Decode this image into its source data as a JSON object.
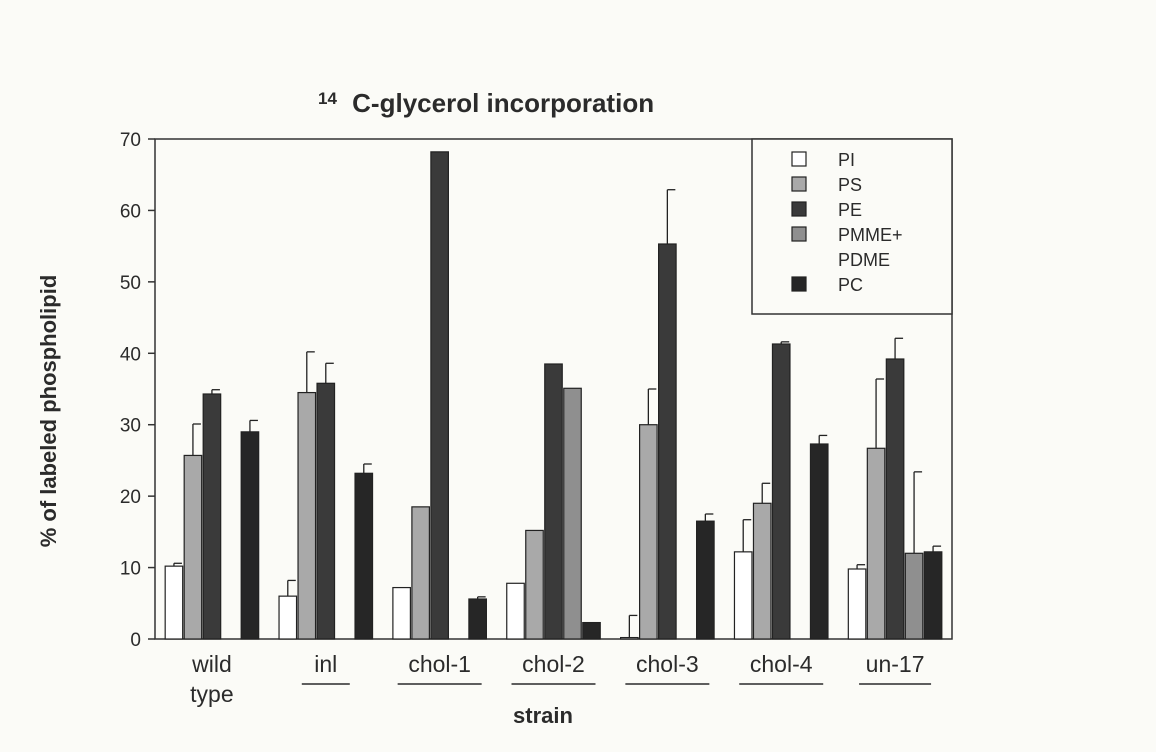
{
  "chart_data": {
    "type": "bar",
    "title_sup": "14",
    "title_main": "C-glycerol incorporation",
    "xlabel": "strain",
    "ylabel": "% of labeled phospholipid",
    "ylim": [
      0,
      70
    ],
    "yticks": [
      0,
      10,
      20,
      30,
      40,
      50,
      60,
      70
    ],
    "categories": [
      {
        "lines": [
          "wild",
          "type"
        ],
        "underline": false
      },
      {
        "lines": [
          "inl"
        ],
        "underline": true
      },
      {
        "lines": [
          "chol-1"
        ],
        "underline": true
      },
      {
        "lines": [
          "chol-2"
        ],
        "underline": true
      },
      {
        "lines": [
          "chol-3"
        ],
        "underline": true
      },
      {
        "lines": [
          "chol-4"
        ],
        "underline": true
      },
      {
        "lines": [
          "un-17"
        ],
        "underline": true
      }
    ],
    "series": [
      {
        "name": "PI",
        "color": "#ffffff",
        "values": [
          10.2,
          6.0,
          7.2,
          7.8,
          0.2,
          12.2,
          9.8
        ],
        "errors": [
          0.4,
          2.2,
          0,
          0,
          3.1,
          4.5,
          0.6
        ]
      },
      {
        "name": "PS",
        "color": "#a9a9a9",
        "values": [
          25.7,
          34.5,
          18.5,
          15.2,
          30.0,
          19.0,
          26.7
        ],
        "errors": [
          4.4,
          5.7,
          0,
          0,
          5.0,
          2.8,
          9.7
        ]
      },
      {
        "name": "PE",
        "color": "#3a3a3a",
        "values": [
          34.3,
          35.8,
          68.2,
          38.5,
          55.3,
          41.3,
          39.2
        ],
        "errors": [
          0.6,
          2.8,
          0,
          0,
          7.6,
          0.3,
          2.9
        ]
      },
      {
        "name_lines": [
          "PMME+",
          "PDME"
        ],
        "color": "#8f8f8f",
        "values": [
          0,
          0,
          0,
          35.1,
          0,
          0,
          12.0
        ],
        "errors": [
          0,
          0,
          0,
          0,
          0,
          0,
          11.4
        ]
      },
      {
        "name": "PC",
        "color": "#262626",
        "values": [
          29.0,
          23.2,
          5.6,
          2.3,
          16.5,
          27.3,
          12.2
        ],
        "errors": [
          1.6,
          1.3,
          0.3,
          0,
          1.0,
          1.2,
          0.8
        ]
      }
    ],
    "legend_position": "top-right",
    "grid": false
  }
}
